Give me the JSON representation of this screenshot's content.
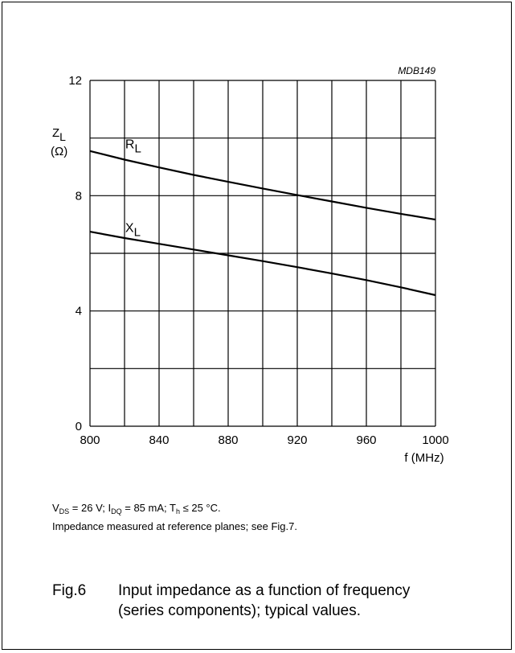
{
  "chart_data": {
    "type": "line",
    "code": "MDB149",
    "y_label_main": "Z",
    "y_label_sub": "L",
    "y_label_unit": "(Ω)",
    "x_label": "f (MHz)",
    "xlim": [
      800,
      1000
    ],
    "ylim": [
      0,
      12
    ],
    "x_ticks": [
      800,
      840,
      880,
      920,
      960,
      1000
    ],
    "y_ticks": [
      0,
      4,
      8,
      12
    ],
    "x_grid_step": 20,
    "y_grid_step": 2,
    "grid": true,
    "series": [
      {
        "name": "R",
        "name_sub": "L",
        "x": [
          800,
          820,
          840,
          860,
          880,
          900,
          920,
          940,
          960,
          980,
          1000
        ],
        "y": [
          9.55,
          9.25,
          8.98,
          8.72,
          8.48,
          8.25,
          8.02,
          7.8,
          7.58,
          7.37,
          7.17
        ]
      },
      {
        "name": "X",
        "name_sub": "L",
        "x": [
          800,
          820,
          840,
          860,
          880,
          900,
          920,
          940,
          960,
          980,
          1000
        ],
        "y": [
          6.75,
          6.53,
          6.33,
          6.13,
          5.93,
          5.73,
          5.52,
          5.3,
          5.07,
          4.82,
          4.55
        ]
      }
    ]
  },
  "conditions": {
    "vds_sym": "V",
    "vds_sub": "DS",
    "vds_val": " = 26 V; ",
    "idq_sym": "I",
    "idq_sub": "DQ",
    "idq_val": " = 85 mA; ",
    "th_sym": "T",
    "th_sub": "h",
    "th_val": " ≤ 25 °C.",
    "note": "Impedance measured at reference planes; see Fig.7."
  },
  "caption": {
    "number": "Fig.6",
    "line1": "Input impedance as a function of frequency",
    "line2": "(series components); typical values."
  }
}
